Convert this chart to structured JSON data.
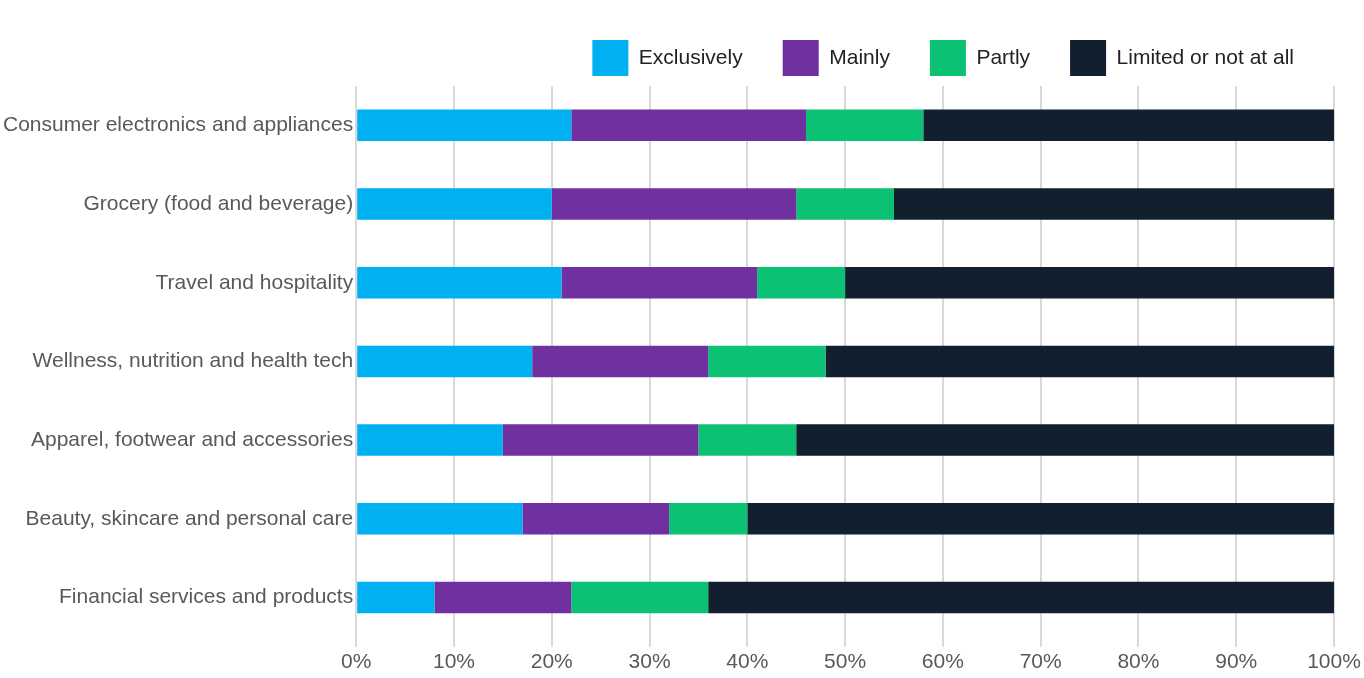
{
  "chart_data": {
    "type": "bar",
    "orientation": "horizontal",
    "stacked": true,
    "categories": [
      "Consumer electronics and appliances",
      "Grocery (food and beverage)",
      "Travel and hospitality",
      "Wellness, nutrition and health tech",
      "Apparel, footwear and accessories",
      "Beauty, skincare and personal care",
      "Financial services and products"
    ],
    "series": [
      {
        "name": "Exclusively",
        "color": "#00b0f0",
        "values": [
          22,
          20,
          21,
          18,
          15,
          17,
          8
        ]
      },
      {
        "name": "Mainly",
        "color": "#7030a0",
        "values": [
          24,
          25,
          20,
          18,
          20,
          15,
          14
        ]
      },
      {
        "name": "Partly",
        "color": "#0bc174",
        "values": [
          12,
          10,
          9,
          12,
          10,
          8,
          14
        ]
      },
      {
        "name": "Limited or not at all",
        "color": "#111f2e",
        "values": [
          42,
          45,
          50,
          52,
          55,
          60,
          64
        ]
      }
    ],
    "xlim": [
      0,
      100
    ],
    "xticks": [
      {
        "value": 0,
        "label": "0%"
      },
      {
        "value": 10,
        "label": "10%"
      },
      {
        "value": 20,
        "label": "20%"
      },
      {
        "value": 30,
        "label": "30%"
      },
      {
        "value": 40,
        "label": "40%"
      },
      {
        "value": 50,
        "label": "50%"
      },
      {
        "value": 60,
        "label": "60%"
      },
      {
        "value": 70,
        "label": "70%"
      },
      {
        "value": 80,
        "label": "80%"
      },
      {
        "value": 90,
        "label": "90%"
      },
      {
        "value": 100,
        "label": "100%"
      }
    ],
    "grid": "x",
    "legend": "top right"
  }
}
